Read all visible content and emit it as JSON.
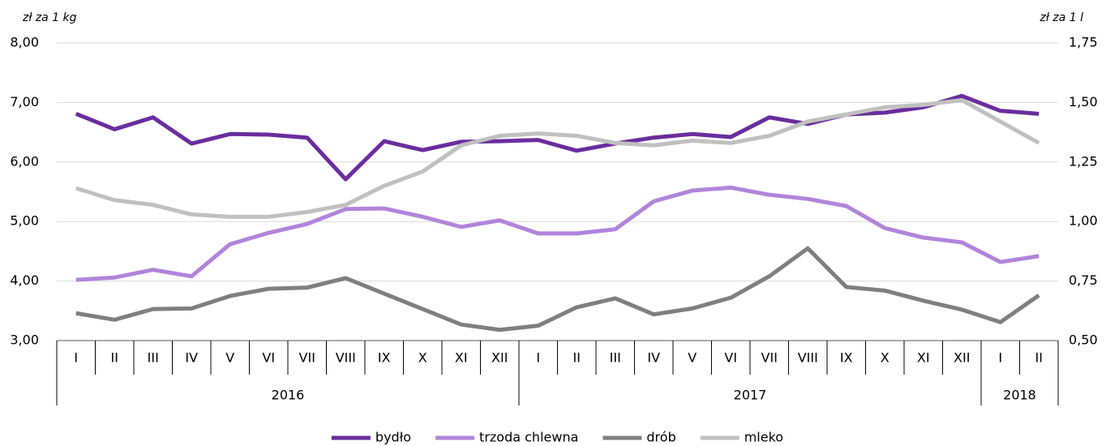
{
  "chart_data": {
    "type": "line",
    "y_label": "zł za 1 kg",
    "y2_label": "zł za 1 l",
    "category_groups": [
      {
        "label": "2016",
        "categories": [
          "I",
          "II",
          "III",
          "IV",
          "V",
          "VI",
          "VII",
          "VIII",
          "IX",
          "X",
          "XI",
          "XII"
        ]
      },
      {
        "label": "2017",
        "categories": [
          "I",
          "II",
          "III",
          "IV",
          "V",
          "VI",
          "VII",
          "VIII",
          "IX",
          "X",
          "XI",
          "XII"
        ]
      },
      {
        "label": "2018",
        "categories": [
          "I",
          "II"
        ]
      }
    ],
    "ylim": [
      3,
      8
    ],
    "yticks": [
      {
        "value": 3,
        "label": "3,00"
      },
      {
        "value": 4,
        "label": "4,00"
      },
      {
        "value": 5,
        "label": "5,00"
      },
      {
        "value": 6,
        "label": "6,00"
      },
      {
        "value": 7,
        "label": "7,00"
      },
      {
        "value": 8,
        "label": "8,00"
      }
    ],
    "y2lim": [
      0.5,
      1.75
    ],
    "y2ticks": [
      {
        "value": 0.5,
        "label": "0,50"
      },
      {
        "value": 0.75,
        "label": "0,75"
      },
      {
        "value": 1,
        "label": "1,00"
      },
      {
        "value": 1.25,
        "label": "1,25"
      },
      {
        "value": 1.5,
        "label": "1,50"
      },
      {
        "value": 1.75,
        "label": "1,75"
      }
    ],
    "grid": true,
    "legend": "bottom",
    "series": [
      {
        "name": "bydło",
        "color": "#6a2d9e",
        "values": [
          6.81,
          6.55,
          6.75,
          6.31,
          6.47,
          6.46,
          6.41,
          5.71,
          6.35,
          6.2,
          6.34,
          6.35,
          6.37,
          6.19,
          6.31,
          6.41,
          6.47,
          6.42,
          6.75,
          6.64,
          6.8,
          6.83,
          6.92,
          7.11,
          6.86,
          6.81
        ]
      },
      {
        "name": "trzoda chlewna",
        "color": "#b185da",
        "values": [
          4.02,
          4.06,
          4.19,
          4.08,
          4.62,
          4.81,
          4.96,
          5.21,
          5.22,
          5.08,
          4.91,
          5.02,
          4.8,
          4.8,
          4.87,
          5.34,
          5.52,
          5.57,
          5.45,
          5.38,
          5.26,
          4.89,
          4.73,
          4.65,
          4.32,
          4.42
        ]
      },
      {
        "name": "drób",
        "color": "#7f7f7f",
        "values": [
          3.46,
          3.35,
          3.53,
          3.54,
          3.75,
          3.87,
          3.89,
          4.05,
          3.79,
          3.53,
          3.27,
          3.18,
          3.25,
          3.56,
          3.71,
          3.44,
          3.54,
          3.72,
          4.08,
          4.55,
          3.9,
          3.84,
          3.67,
          3.52,
          3.31,
          3.76
        ]
      },
      {
        "name": "mleko",
        "color": "#c0c0c0",
        "axis": "y2",
        "values": [
          1.14,
          1.09,
          1.07,
          1.03,
          1.02,
          1.02,
          1.04,
          1.07,
          1.15,
          1.21,
          1.32,
          1.36,
          1.37,
          1.36,
          1.33,
          1.32,
          1.34,
          1.33,
          1.36,
          1.42,
          1.45,
          1.48,
          1.49,
          1.51,
          1.42,
          1.33
        ]
      }
    ]
  }
}
